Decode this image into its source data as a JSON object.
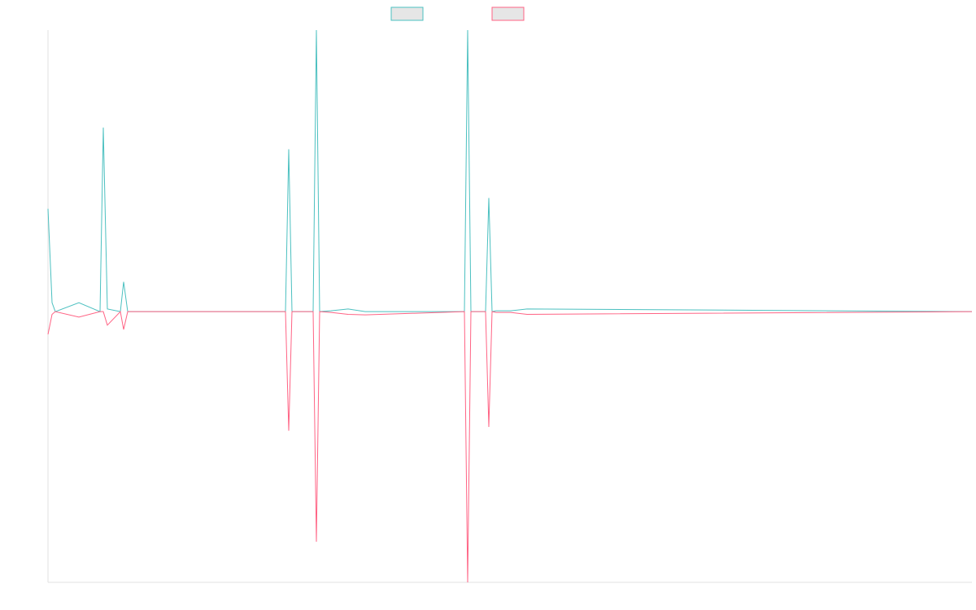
{
  "chart_data": {
    "type": "line",
    "x": [
      0,
      5,
      9,
      38,
      64,
      68,
      73,
      89,
      93,
      98,
      292,
      296,
      300,
      326,
      330,
      334,
      348,
      369,
      390,
      512,
      516,
      520,
      538,
      542,
      546,
      551,
      560,
      569,
      589,
      1136
    ],
    "series": [
      {
        "color": "#4bc0c0",
        "values": [
          38,
          3.3,
          0,
          3.3,
          0,
          68,
          1,
          0,
          11,
          0,
          0,
          60,
          0,
          0,
          104,
          0,
          0.3,
          1,
          0,
          0,
          104,
          0,
          0,
          42,
          0,
          0.3,
          0.3,
          0.3,
          1,
          0
        ]
      },
      {
        "color": "#ff6384",
        "values": [
          -8.4,
          -1,
          0,
          -2,
          0,
          0,
          -5,
          0,
          -6.6,
          0,
          0,
          -44,
          0,
          0,
          -85,
          0,
          -0.3,
          -1,
          -1.2,
          0,
          -100,
          0,
          0,
          -42.6,
          0,
          -0.3,
          -0.3,
          -0.3,
          -1,
          0
        ]
      }
    ],
    "xlim": [
      0,
      1136
    ],
    "ylim": [
      -100,
      104
    ]
  }
}
